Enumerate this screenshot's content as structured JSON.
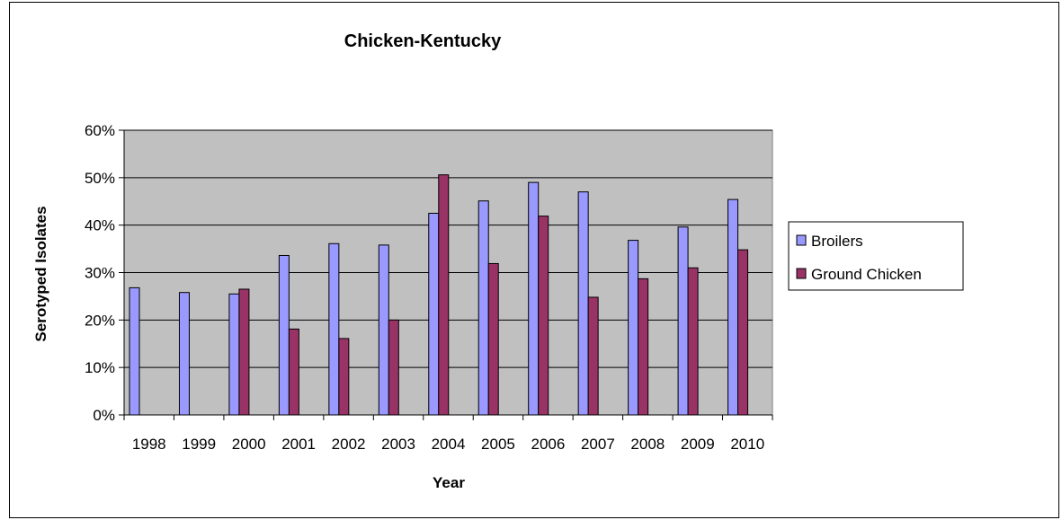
{
  "chart_data": {
    "type": "bar",
    "title": "Chicken-Kentucky",
    "xlabel": "Year",
    "ylabel": "Serotyped Isolates",
    "categories": [
      "1998",
      "1999",
      "2000",
      "2001",
      "2002",
      "2003",
      "2004",
      "2005",
      "2006",
      "2007",
      "2008",
      "2009",
      "2010"
    ],
    "series": [
      {
        "name": "Broilers",
        "color": "#9999ff",
        "values": [
          0.268,
          0.258,
          0.255,
          0.336,
          0.361,
          0.358,
          0.425,
          0.451,
          0.49,
          0.47,
          0.368,
          0.396,
          0.454
        ]
      },
      {
        "name": "Ground Chicken",
        "color": "#993366",
        "values": [
          null,
          null,
          0.265,
          0.181,
          0.161,
          0.2,
          0.506,
          0.319,
          0.419,
          0.248,
          0.287,
          0.31,
          0.348
        ]
      }
    ],
    "ylim": [
      0,
      0.6
    ],
    "yticks": [
      0,
      0.1,
      0.2,
      0.3,
      0.4,
      0.5,
      0.6
    ],
    "ytick_labels": [
      "0%",
      "10%",
      "20%",
      "30%",
      "40%",
      "50%",
      "60%"
    ],
    "plot_background": "#c0c0c0",
    "grid": true,
    "legend_position": "right"
  }
}
